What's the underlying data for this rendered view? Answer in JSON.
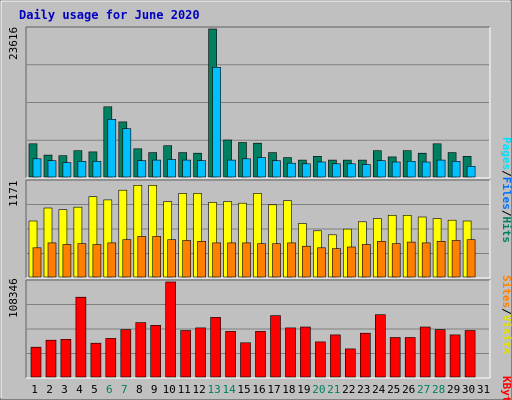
{
  "colors": {
    "background": "#c0c0c0",
    "title": "#0000c0",
    "hits": "#008060",
    "files": "#00c0ff",
    "pages": "#00e0ff",
    "visits": "#ffff00",
    "sites": "#ff8000",
    "kbytes": "#ff0000",
    "weekend_day": "#008060",
    "weekday": "#000000"
  },
  "chart_data": [
    {
      "type": "bar",
      "title": "Daily usage for June 2020",
      "ylabel_parts": [
        "Pages",
        "/",
        "Files",
        "/",
        "Hits"
      ],
      "ymax_label": "23616",
      "ylim": [
        0,
        23616
      ],
      "grid": true,
      "categories": [
        "1",
        "2",
        "3",
        "4",
        "5",
        "6",
        "7",
        "8",
        "9",
        "10",
        "11",
        "12",
        "13",
        "14",
        "15",
        "16",
        "17",
        "18",
        "19",
        "20",
        "21",
        "22",
        "23",
        "24",
        "25",
        "26",
        "27",
        "28",
        "29",
        "30",
        "31"
      ],
      "weekend_days": [
        "6",
        "7",
        "13",
        "14",
        "20",
        "21",
        "27",
        "28"
      ],
      "series": [
        {
          "name": "Hits",
          "values": [
            5300,
            3500,
            3400,
            4200,
            4000,
            11200,
            8800,
            4500,
            3900,
            5000,
            3900,
            3800,
            23616,
            5900,
            5500,
            5400,
            3900,
            3100,
            2700,
            3300,
            2700,
            2700,
            2700,
            4200,
            3200,
            4200,
            3800,
            5300,
            3900,
            3300,
            0
          ]
        },
        {
          "name": "Files",
          "values": [
            2900,
            2600,
            2300,
            2500,
            2500,
            9200,
            7700,
            2600,
            2700,
            2800,
            2700,
            2600,
            17500,
            2700,
            2900,
            3100,
            2600,
            2200,
            2100,
            2400,
            2100,
            2100,
            2000,
            2600,
            2400,
            2500,
            2400,
            2700,
            2500,
            1700,
            0
          ]
        },
        {
          "name": "Pages",
          "values": [
            0,
            0,
            0,
            0,
            0,
            0,
            0,
            0,
            0,
            0,
            0,
            0,
            0,
            0,
            0,
            0,
            0,
            0,
            0,
            0,
            0,
            0,
            0,
            0,
            0,
            0,
            0,
            0,
            0,
            0,
            0
          ]
        }
      ]
    },
    {
      "type": "bar",
      "ylabel_parts": [
        "Sites",
        "/",
        "Visits"
      ],
      "ymax_label": "1171",
      "ylim": [
        0,
        1171
      ],
      "grid": true,
      "categories": [
        "1",
        "2",
        "3",
        "4",
        "5",
        "6",
        "7",
        "8",
        "9",
        "10",
        "11",
        "12",
        "13",
        "14",
        "15",
        "16",
        "17",
        "18",
        "19",
        "20",
        "21",
        "22",
        "23",
        "24",
        "25",
        "26",
        "27",
        "28",
        "29",
        "30",
        "31"
      ],
      "series": [
        {
          "name": "Visits",
          "values": [
            690,
            850,
            830,
            860,
            990,
            950,
            1070,
            1130,
            1130,
            930,
            1030,
            1030,
            920,
            930,
            910,
            1030,
            890,
            940,
            660,
            570,
            520,
            590,
            680,
            720,
            760,
            760,
            740,
            720,
            700,
            690,
            0
          ]
        },
        {
          "name": "Sites",
          "values": [
            360,
            420,
            400,
            410,
            400,
            420,
            460,
            500,
            500,
            460,
            450,
            440,
            420,
            420,
            420,
            410,
            410,
            420,
            380,
            360,
            350,
            370,
            400,
            440,
            410,
            430,
            420,
            440,
            450,
            460,
            0
          ]
        }
      ]
    },
    {
      "type": "bar",
      "ylabel_parts": [
        "KBytes"
      ],
      "ymax_label": "108346",
      "ylim": [
        0,
        108346
      ],
      "grid": true,
      "categories": [
        "1",
        "2",
        "3",
        "4",
        "5",
        "6",
        "7",
        "8",
        "9",
        "10",
        "11",
        "12",
        "13",
        "14",
        "15",
        "16",
        "17",
        "18",
        "19",
        "20",
        "21",
        "22",
        "23",
        "24",
        "25",
        "26",
        "27",
        "28",
        "29",
        "30",
        "31"
      ],
      "series": [
        {
          "name": "KBytes",
          "values": [
            34000,
            42000,
            43000,
            91000,
            38500,
            44000,
            54000,
            62000,
            59000,
            108346,
            53000,
            56000,
            68000,
            52000,
            39000,
            52000,
            70000,
            56000,
            57000,
            40000,
            48000,
            32000,
            50000,
            71000,
            45000,
            45000,
            57000,
            54000,
            48000,
            53000,
            0
          ]
        }
      ]
    }
  ]
}
